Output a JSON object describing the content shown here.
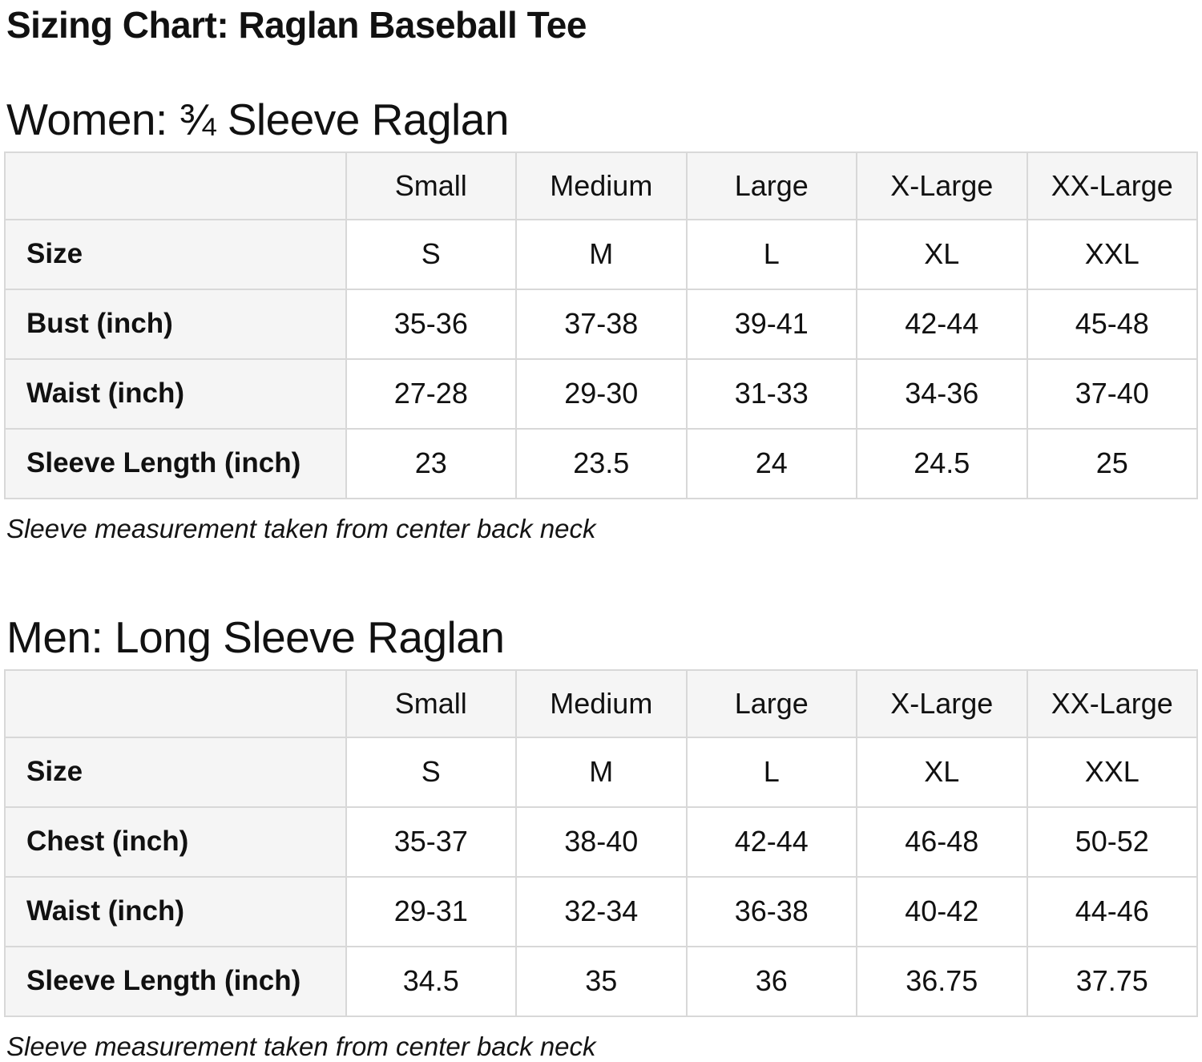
{
  "page": {
    "title": "Sizing Chart: Raglan Baseball Tee"
  },
  "colors": {
    "page_background": "#ffffff",
    "text": "#111111",
    "cell_background": "#f5f5f5",
    "table_border": "#d8d8d8"
  },
  "sections": [
    {
      "heading": "Women: ¾ Sleeve Raglan",
      "note": "Sleeve measurement taken from center back neck",
      "table": {
        "columns": [
          "",
          "Small",
          "Medium",
          "Large",
          "X-Large",
          "XX-Large"
        ],
        "rows": [
          {
            "label": "Size",
            "values": [
              "S",
              "M",
              "L",
              "XL",
              "XXL"
            ]
          },
          {
            "label": "Bust (inch)",
            "values": [
              "35-36",
              "37-38",
              "39-41",
              "42-44",
              "45-48"
            ]
          },
          {
            "label": "Waist (inch)",
            "values": [
              "27-28",
              "29-30",
              "31-33",
              "34-36",
              "37-40"
            ]
          },
          {
            "label": "Sleeve Length (inch)",
            "values": [
              "23",
              "23.5",
              "24",
              "24.5",
              "25"
            ]
          }
        ]
      }
    },
    {
      "heading": "Men: Long Sleeve Raglan",
      "note": "Sleeve measurement taken from center back neck",
      "table": {
        "columns": [
          "",
          "Small",
          "Medium",
          "Large",
          "X-Large",
          "XX-Large"
        ],
        "rows": [
          {
            "label": "Size",
            "values": [
              "S",
              "M",
              "L",
              "XL",
              "XXL"
            ]
          },
          {
            "label": "Chest (inch)",
            "values": [
              "35-37",
              "38-40",
              "42-44",
              "46-48",
              "50-52"
            ]
          },
          {
            "label": "Waist (inch)",
            "values": [
              "29-31",
              "32-34",
              "36-38",
              "40-42",
              "44-46"
            ]
          },
          {
            "label": "Sleeve Length (inch)",
            "values": [
              "34.5",
              "35",
              "36",
              "36.75",
              "37.75"
            ]
          }
        ]
      }
    }
  ]
}
